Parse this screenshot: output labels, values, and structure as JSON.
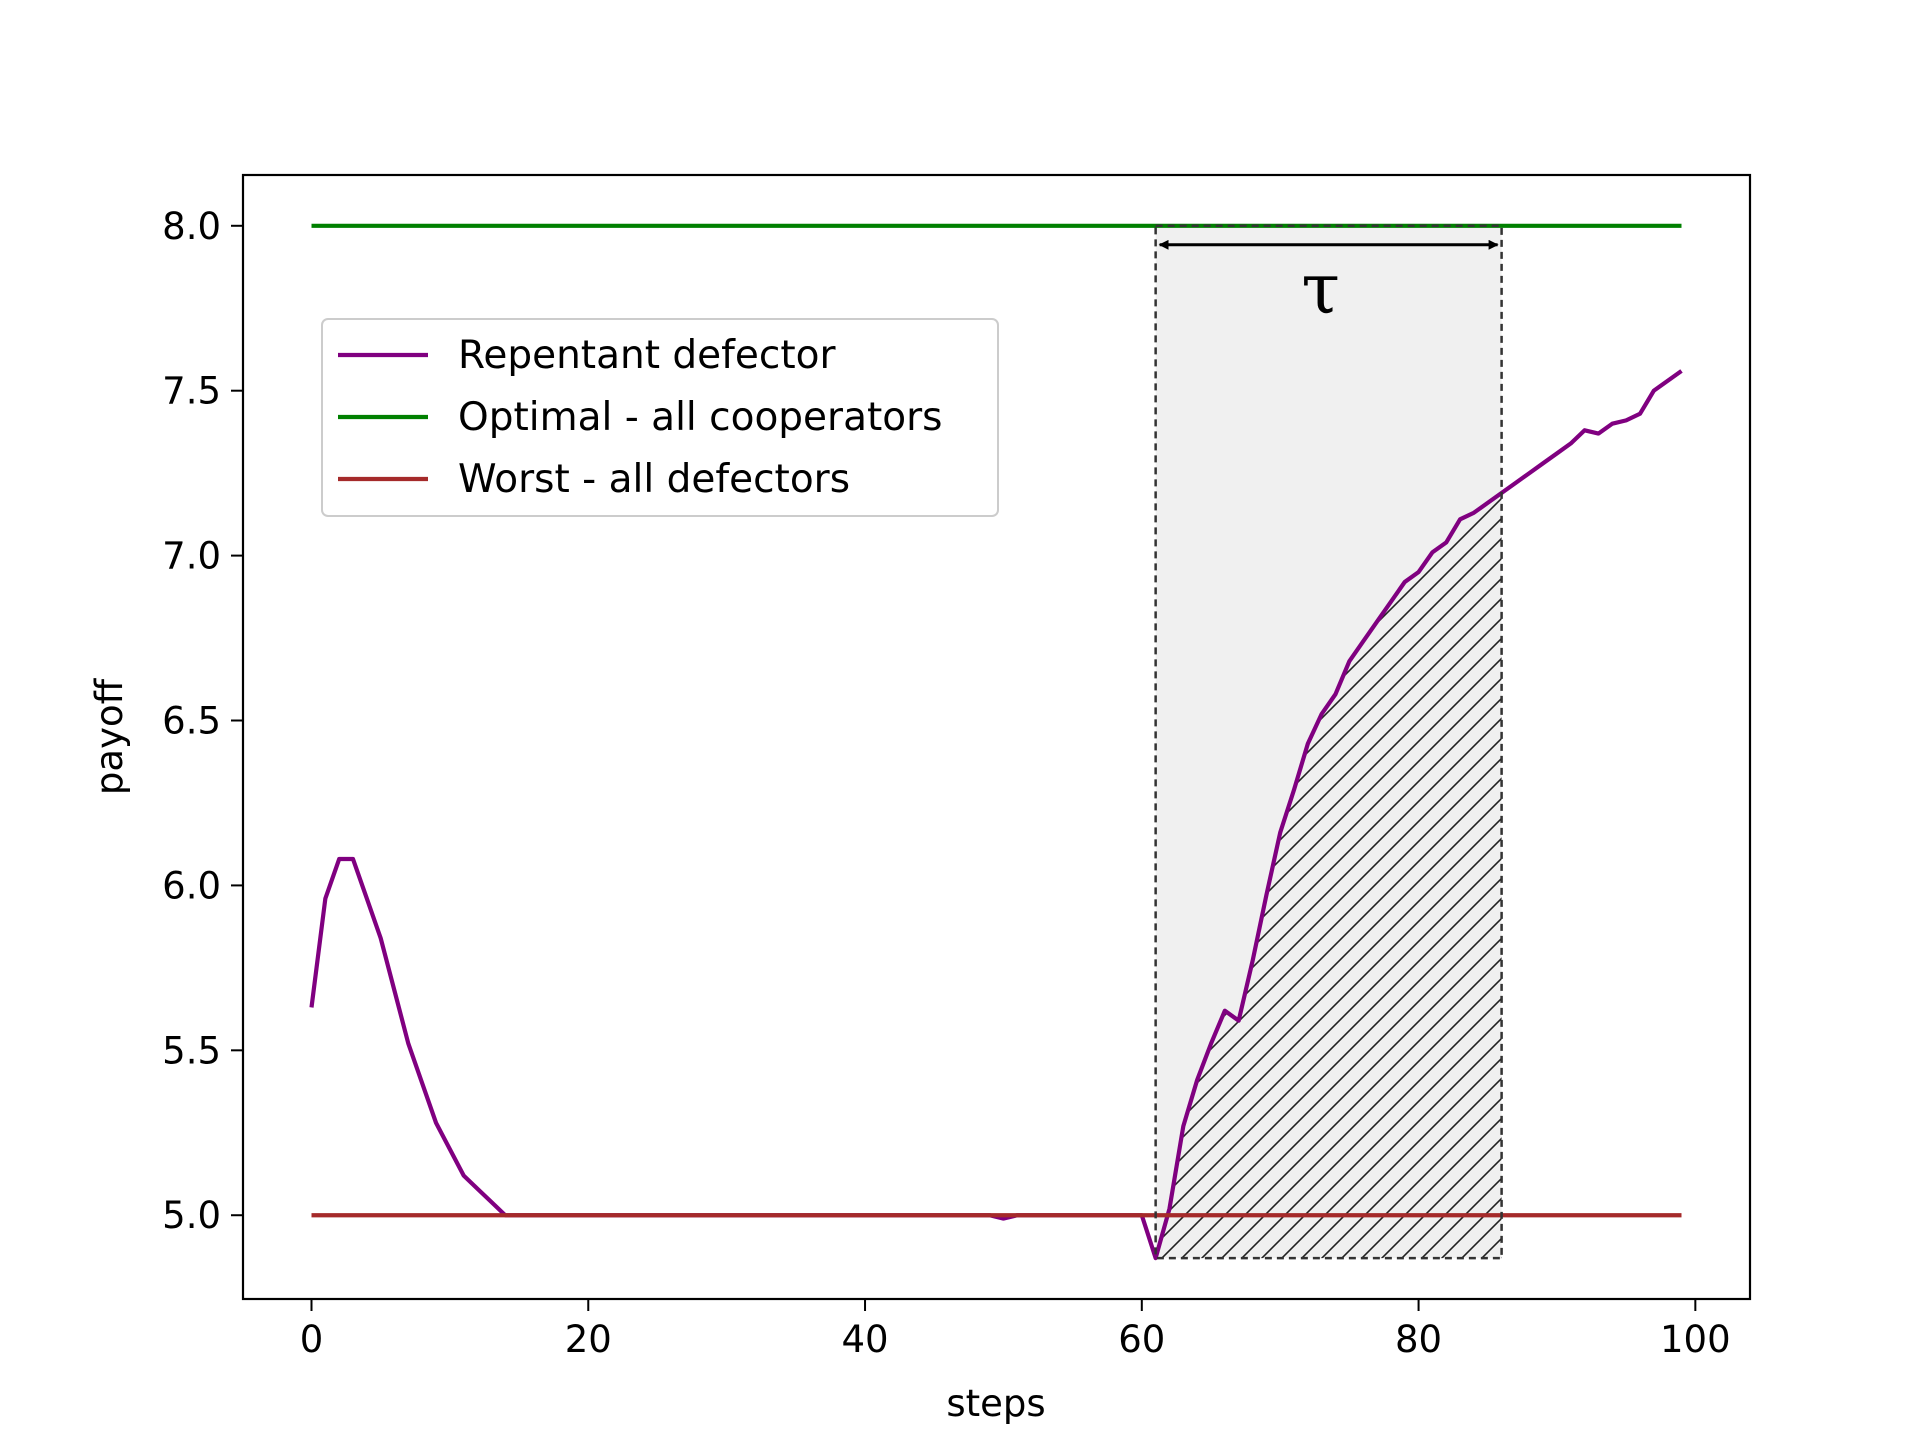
{
  "chart_data": {
    "type": "line",
    "title": "",
    "xlabel": "steps",
    "ylabel": "payoff",
    "xlim": [
      -4.95,
      103.95
    ],
    "ylim": [
      4.746,
      8.154
    ],
    "xticks": [
      0,
      20,
      40,
      60,
      80,
      100
    ],
    "yticks": [
      5.0,
      5.5,
      6.0,
      6.5,
      7.0,
      7.5,
      8.0
    ],
    "ytick_labels": [
      "5.0",
      "5.5",
      "6.0",
      "6.5",
      "7.0",
      "7.5",
      "8.0"
    ],
    "grid": false,
    "legend": {
      "placement": "upper-left"
    },
    "series": [
      {
        "name": "Repentant defector",
        "color": "#800080",
        "x": [
          0,
          1,
          2,
          3,
          4,
          5,
          6,
          7,
          8,
          9,
          10,
          11,
          12,
          13,
          14,
          15,
          16,
          17,
          18,
          19,
          20,
          21,
          22,
          23,
          24,
          25,
          26,
          27,
          28,
          29,
          30,
          31,
          32,
          33,
          34,
          35,
          36,
          37,
          38,
          39,
          40,
          41,
          42,
          43,
          44,
          45,
          46,
          47,
          48,
          49,
          50,
          51,
          52,
          53,
          54,
          55,
          56,
          57,
          58,
          59,
          60,
          61,
          62,
          63,
          64,
          65,
          66,
          67,
          68,
          69,
          70,
          71,
          72,
          73,
          74,
          75,
          76,
          77,
          78,
          79,
          80,
          81,
          82,
          83,
          84,
          85,
          86,
          87,
          88,
          89,
          90,
          91,
          92,
          93,
          94,
          95,
          96,
          97,
          98,
          99
        ],
        "y": [
          5.63,
          5.96,
          6.08,
          6.08,
          5.96,
          5.84,
          5.68,
          5.52,
          5.4,
          5.28,
          5.2,
          5.12,
          5.08,
          5.04,
          5.0,
          5.0,
          5.0,
          5.0,
          5.0,
          5.0,
          5.0,
          5.0,
          5.0,
          5.0,
          5.0,
          5.0,
          5.0,
          5.0,
          5.0,
          5.0,
          5.0,
          5.0,
          5.0,
          5.0,
          5.0,
          5.0,
          5.0,
          5.0,
          5.0,
          5.0,
          5.0,
          5.0,
          5.0,
          5.0,
          5.0,
          5.0,
          5.0,
          5.0,
          5.0,
          5.0,
          4.99,
          5.0,
          5.0,
          5.0,
          5.0,
          5.0,
          5.0,
          5.0,
          5.0,
          5.0,
          5.0,
          4.87,
          5.02,
          5.27,
          5.41,
          5.52,
          5.62,
          5.59,
          5.77,
          5.97,
          6.16,
          6.29,
          6.43,
          6.52,
          6.58,
          6.68,
          6.74,
          6.8,
          6.86,
          6.92,
          6.95,
          7.01,
          7.04,
          7.11,
          7.13,
          7.16,
          7.19,
          7.22,
          7.25,
          7.28,
          7.31,
          7.34,
          7.38,
          7.37,
          7.4,
          7.41,
          7.43,
          7.5,
          7.53,
          7.56
        ]
      },
      {
        "name": "Optimal - all cooperators",
        "color": "#008000",
        "x": [
          0,
          99
        ],
        "y": [
          8.0,
          8.0
        ]
      },
      {
        "name": "Worst - all defectors",
        "color": "#a52a2a",
        "x": [
          0,
          99
        ],
        "y": [
          5.0,
          5.0
        ]
      }
    ],
    "annotations": [
      {
        "type": "recovery-region",
        "x_start": 61,
        "x_end": 86,
        "y_bottom": 4.87,
        "y_top": 8.0,
        "label": "τ"
      }
    ]
  }
}
